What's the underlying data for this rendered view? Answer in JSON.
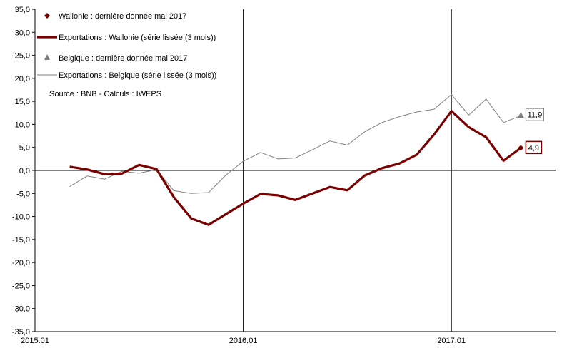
{
  "colors": {
    "wallonie": "#7b0000",
    "belgique": "#808080",
    "axis": "#000000",
    "marker_belgique": "#7f7f7f"
  },
  "chart_data": {
    "type": "line",
    "ylim": [
      -35,
      35
    ],
    "yticks": [
      -35,
      -30,
      -25,
      -20,
      -15,
      -10,
      -5,
      0,
      5,
      10,
      15,
      20,
      25,
      30,
      35
    ],
    "ytick_labels": [
      "-35,0",
      "-30,0",
      "-25,0",
      "-20,0",
      "-15,0",
      "-10,0",
      "-5,0",
      "0,0",
      "5,0",
      "10,0",
      "15,0",
      "20,0",
      "25,0",
      "30,0",
      "35,0"
    ],
    "x_start": "2015.01",
    "x_end": "2017.06",
    "xticks": [
      "2015.01",
      "2016.01",
      "2017.01"
    ],
    "xtick_labels": [
      "2015.01",
      "2016.01",
      "2017.01"
    ],
    "vertical_lines": [
      "2016.01",
      "2017.01"
    ],
    "series": [
      {
        "name": "Exportations : Wallonie (série lissée (3 mois))",
        "x": [
          "2015.03",
          "2015.04",
          "2015.05",
          "2015.06",
          "2015.07",
          "2015.08",
          "2015.09",
          "2015.10",
          "2015.11",
          "2015.12",
          "2016.01",
          "2016.02",
          "2016.03",
          "2016.04",
          "2016.05",
          "2016.06",
          "2016.07",
          "2016.08",
          "2016.09",
          "2016.10",
          "2016.11",
          "2016.12",
          "2017.01",
          "2017.02",
          "2017.03",
          "2017.04",
          "2017.05"
        ],
        "values": [
          0.8,
          0.2,
          -0.8,
          -0.7,
          1.2,
          0.3,
          -5.8,
          -10.4,
          -11.8,
          -9.5,
          -7.2,
          -5.1,
          -5.4,
          -6.4,
          -5.0,
          -3.6,
          -4.3,
          -1.1,
          0.5,
          1.5,
          3.4,
          7.8,
          12.9,
          9.4,
          7.2,
          2.1,
          4.9
        ]
      },
      {
        "name": "Exportations : Belgique (série lissée (3 mois))",
        "x": [
          "2015.03",
          "2015.04",
          "2015.05",
          "2015.06",
          "2015.07",
          "2015.08",
          "2015.09",
          "2015.10",
          "2015.11",
          "2015.12",
          "2016.01",
          "2016.02",
          "2016.03",
          "2016.04",
          "2016.05",
          "2016.06",
          "2016.07",
          "2016.08",
          "2016.09",
          "2016.10",
          "2016.11",
          "2016.12",
          "2017.01",
          "2017.02",
          "2017.03",
          "2017.04",
          "2017.05"
        ],
        "values": [
          -3.5,
          -1.2,
          -1.9,
          -0.2,
          -0.6,
          0.2,
          -4.4,
          -5.0,
          -4.8,
          -1.0,
          2.0,
          3.9,
          2.5,
          2.7,
          4.5,
          6.4,
          5.5,
          8.4,
          10.4,
          11.7,
          12.7,
          13.3,
          16.5,
          12.0,
          15.5,
          10.4,
          11.9
        ]
      }
    ],
    "last_points": [
      {
        "name": "Wallonie : dernière donnée mai 2017",
        "x": "2017.05",
        "value": 4.9,
        "label": "4,9",
        "marker": "diamond"
      },
      {
        "name": "Belgique : dernière donnée mai 2017",
        "x": "2017.05",
        "value": 11.9,
        "label": "11,9",
        "marker": "triangle"
      }
    ],
    "legend": [
      {
        "label": "Wallonie : dernière donnée mai 2017",
        "kind": "diamond"
      },
      {
        "label": "Exportations : Wallonie (série lissée (3 mois))",
        "kind": "thick-line"
      },
      {
        "label": "Belgique : dernière donnée mai 2017",
        "kind": "triangle"
      },
      {
        "label": "Exportations : Belgique (série lissée (3 mois))",
        "kind": "thin-line"
      }
    ],
    "legend_position": "top-left",
    "source": "Source :  BNB - Calculs  :  IWEPS",
    "grid": false
  }
}
